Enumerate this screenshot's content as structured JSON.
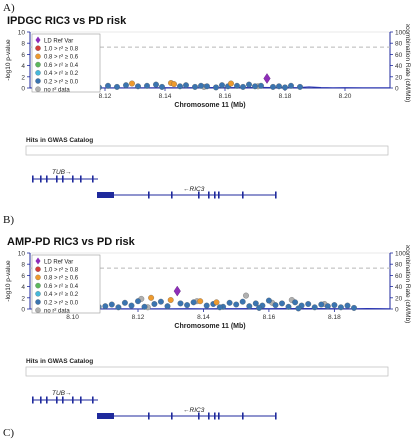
{
  "panel_labels": [
    "A)",
    "B)",
    "C)"
  ],
  "colors": {
    "axis": "#1f2a9c",
    "recomb": "#2b36b3",
    "threshold": "#b8b8b8",
    "lead": "#8e2db9",
    "r2_bins": [
      "#d43f3a",
      "#ee9a2e",
      "#5cb85c",
      "#46b8da",
      "#3a74b0",
      "#b0b0b0"
    ]
  },
  "common": {
    "legend_items": [
      "LD Ref Var",
      "1.0 > r² ≥ 0.8",
      "0.8 > r² ≥ 0.6",
      "0.6 > r² ≥ 0.4",
      "0.4 > r² ≥ 0.2",
      "0.2 > r² ≥ 0.0",
      "no r² data"
    ],
    "ylabel": "-log10 p-value",
    "y2label": "Recombination Rate (cM/Mb)",
    "xlabel": "Chromosome 11 (Mb)",
    "gwas_label": "Hits in GWAS Catalog",
    "gene_tub": "TUB→",
    "gene_ric3": "←RIC3"
  },
  "chart_data": [
    {
      "type": "scatter",
      "title": "IPDGC RIC3 vs PD risk",
      "xlabel": "Chromosome 11 (Mb)",
      "ylabel": "-log10 p-value",
      "y2label": "Recombination Rate (cM/Mb)",
      "xlim": [
        8.095,
        8.215
      ],
      "ylim": [
        0,
        10
      ],
      "y2lim": [
        0,
        100
      ],
      "xticks": [
        "8.12",
        "8.14",
        "8.16",
        "8.18",
        "8.20"
      ],
      "yticks": [
        "0",
        "2",
        "4",
        "6",
        "8",
        "10"
      ],
      "y2ticks": [
        "0",
        "20",
        "40",
        "60",
        "80",
        "100"
      ],
      "significance_line": 7.3,
      "lead_variant": {
        "x": 8.174,
        "y": 1.7
      },
      "points_by_r2": {
        "1.0-0.8": [],
        "0.8-0.6": [
          [
            8.129,
            0.8
          ],
          [
            8.142,
            0.9
          ],
          [
            8.143,
            0.7
          ],
          [
            8.162,
            0.8
          ]
        ],
        "0.6-0.4": [],
        "0.4-0.2": [],
        "0.2-0.0": [
          [
            8.11,
            0.2
          ],
          [
            8.113,
            0.3
          ],
          [
            8.118,
            0.1
          ],
          [
            8.121,
            0.4
          ],
          [
            8.124,
            0.2
          ],
          [
            8.127,
            0.5
          ],
          [
            8.131,
            0.3
          ],
          [
            8.134,
            0.4
          ],
          [
            8.137,
            0.6
          ],
          [
            8.139,
            0.2
          ],
          [
            8.145,
            0.3
          ],
          [
            8.147,
            0.5
          ],
          [
            8.15,
            0.2
          ],
          [
            8.152,
            0.4
          ],
          [
            8.154,
            0.3
          ],
          [
            8.157,
            0.1
          ],
          [
            8.159,
            0.5
          ],
          [
            8.161,
            0.3
          ],
          [
            8.164,
            0.4
          ],
          [
            8.166,
            0.2
          ],
          [
            8.168,
            0.6
          ],
          [
            8.17,
            0.3
          ],
          [
            8.172,
            0.4
          ],
          [
            8.176,
            0.2
          ],
          [
            8.178,
            0.3
          ],
          [
            8.18,
            0.1
          ],
          [
            8.182,
            0.4
          ],
          [
            8.185,
            0.2
          ]
        ],
        "no_data": [
          [
            8.153,
            0.2
          ],
          [
            8.171,
            0.3
          ]
        ]
      },
      "recombination": [
        [
          8.095,
          0.3
        ],
        [
          8.1,
          0.3
        ],
        [
          8.104,
          0.5
        ],
        [
          8.106,
          0.2
        ],
        [
          8.11,
          0.5
        ],
        [
          8.114,
          0.2
        ],
        [
          8.117,
          0.6
        ],
        [
          8.12,
          0.3
        ],
        [
          8.124,
          0.5
        ],
        [
          8.128,
          0.4
        ],
        [
          8.132,
          0.6
        ],
        [
          8.136,
          0.5
        ],
        [
          8.14,
          0.7
        ],
        [
          8.144,
          0.6
        ],
        [
          8.148,
          0.8
        ],
        [
          8.152,
          0.7
        ],
        [
          8.156,
          0.9
        ],
        [
          8.16,
          0.8
        ],
        [
          8.164,
          1.1
        ],
        [
          8.168,
          0.9
        ],
        [
          8.172,
          1.2
        ],
        [
          8.176,
          0.9
        ],
        [
          8.18,
          1.1
        ],
        [
          8.184,
          0.8
        ],
        [
          8.188,
          2.1
        ],
        [
          8.192,
          1.0
        ],
        [
          8.196,
          0.6
        ],
        [
          8.2,
          0.8
        ],
        [
          8.206,
          0.5
        ],
        [
          8.215,
          0.6
        ]
      ]
    },
    {
      "type": "scatter",
      "title": "AMP-PD RIC3 vs PD risk",
      "xlabel": "Chromosome 11 (Mb)",
      "ylabel": "-log10 p-value",
      "y2label": "Recombination Rate (cM/Mb)",
      "xlim": [
        8.087,
        8.197
      ],
      "ylim": [
        0,
        10
      ],
      "y2lim": [
        0,
        100
      ],
      "xticks": [
        "8.10",
        "8.12",
        "8.14",
        "8.16",
        "8.18"
      ],
      "yticks": [
        "0",
        "2",
        "4",
        "6",
        "8",
        "10"
      ],
      "y2ticks": [
        "0",
        "20",
        "40",
        "60",
        "80",
        "100"
      ],
      "significance_line": 7.3,
      "lead_variant": {
        "x": 8.132,
        "y": 3.2
      },
      "points_by_r2": {
        "1.0-0.8": [],
        "0.8-0.6": [
          [
            8.104,
            2.6
          ],
          [
            8.124,
            2.0
          ],
          [
            8.13,
            1.6
          ],
          [
            8.139,
            1.4
          ],
          [
            8.144,
            1.2
          ]
        ],
        "0.6-0.4": [],
        "0.4-0.2": [],
        "0.2-0.0": [
          [
            8.11,
            0.5
          ],
          [
            8.112,
            0.8
          ],
          [
            8.114,
            0.3
          ],
          [
            8.116,
            1.1
          ],
          [
            8.118,
            0.6
          ],
          [
            8.12,
            1.4
          ],
          [
            8.122,
            0.4
          ],
          [
            8.125,
            0.9
          ],
          [
            8.127,
            1.3
          ],
          [
            8.129,
            0.5
          ],
          [
            8.133,
            1.0
          ],
          [
            8.135,
            0.7
          ],
          [
            8.137,
            1.2
          ],
          [
            8.141,
            0.6
          ],
          [
            8.143,
            0.9
          ],
          [
            8.146,
            0.4
          ],
          [
            8.148,
            1.1
          ],
          [
            8.15,
            0.8
          ],
          [
            8.152,
            1.3
          ],
          [
            8.154,
            0.5
          ],
          [
            8.156,
            1.0
          ],
          [
            8.158,
            0.6
          ],
          [
            8.16,
            1.5
          ],
          [
            8.162,
            0.7
          ],
          [
            8.164,
            1.0
          ],
          [
            8.166,
            0.4
          ],
          [
            8.168,
            1.2
          ],
          [
            8.17,
            0.6
          ],
          [
            8.172,
            0.9
          ],
          [
            8.174,
            0.3
          ],
          [
            8.176,
            0.8
          ],
          [
            8.178,
            0.5
          ],
          [
            8.18,
            0.7
          ],
          [
            8.182,
            0.3
          ],
          [
            8.184,
            0.6
          ],
          [
            8.186,
            0.2
          ],
          [
            8.104,
            0.2
          ],
          [
            8.108,
            0.4
          ],
          [
            8.145,
            0.3
          ],
          [
            8.157,
            0.2
          ],
          [
            8.169,
            0.1
          ]
        ],
        "no_data": [
          [
            8.121,
            1.8
          ],
          [
            8.138,
            1.4
          ],
          [
            8.153,
            2.4
          ],
          [
            8.161,
            1.1
          ],
          [
            8.167,
            1.6
          ],
          [
            8.177,
            0.9
          ],
          [
            8.123,
            0.3
          ]
        ]
      },
      "recombination": [
        [
          8.087,
          0.2
        ],
        [
          8.095,
          0.3
        ],
        [
          8.103,
          0.3
        ],
        [
          8.105,
          2.7
        ],
        [
          8.107,
          0.4
        ],
        [
          8.11,
          0.3
        ],
        [
          8.115,
          0.5
        ],
        [
          8.12,
          0.4
        ],
        [
          8.125,
          0.6
        ],
        [
          8.13,
          0.5
        ],
        [
          8.135,
          0.7
        ],
        [
          8.14,
          0.6
        ],
        [
          8.145,
          0.8
        ],
        [
          8.15,
          0.7
        ],
        [
          8.155,
          0.9
        ],
        [
          8.16,
          0.8
        ],
        [
          8.165,
          1.0
        ],
        [
          8.17,
          0.9
        ],
        [
          8.175,
          1.1
        ],
        [
          8.18,
          0.8
        ],
        [
          8.185,
          0.6
        ],
        [
          8.19,
          0.9
        ],
        [
          8.197,
          0.5
        ]
      ]
    }
  ]
}
